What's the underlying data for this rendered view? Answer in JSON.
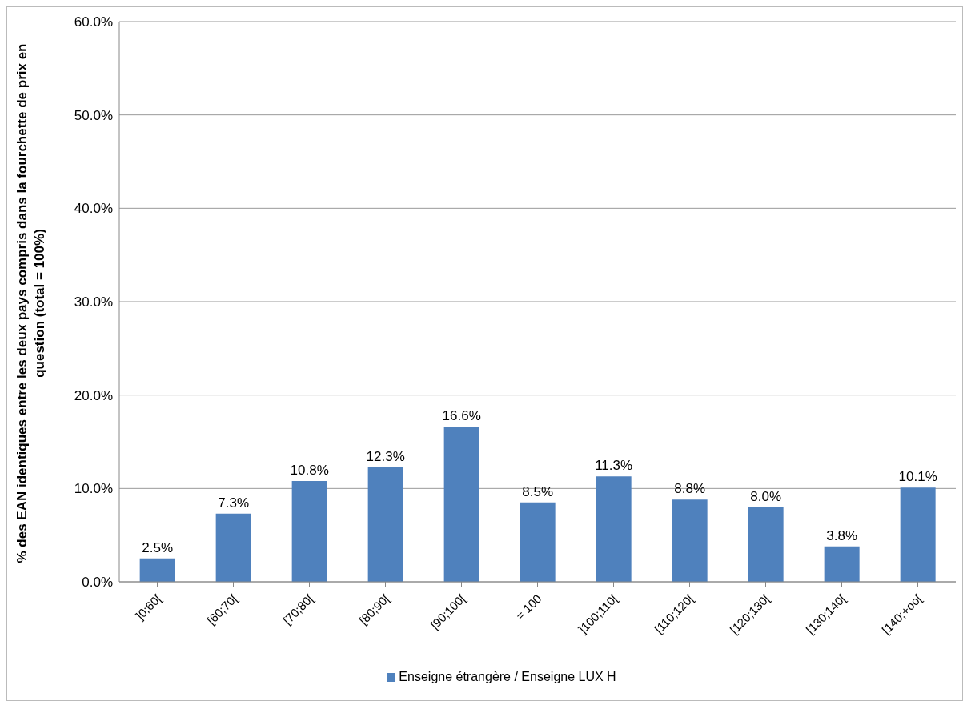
{
  "chart_data": {
    "type": "bar",
    "ylabel": "% des EAN identiques entre les deux pays compris dans la fourchette de prix en question (total = 100%)",
    "categories": [
      "]0;60[",
      "[60;70[",
      "[70;80[",
      "[80;90[",
      "[90;100[",
      "= 100",
      "]100;110[",
      "[110;120[",
      "[120;130[",
      "[130;140[",
      "[140;+oo["
    ],
    "series": [
      {
        "name": "Enseigne étrangère / Enseigne LUX H",
        "color": "#4f81bd",
        "values": [
          2.5,
          7.3,
          10.8,
          12.3,
          16.6,
          8.5,
          11.3,
          8.8,
          8.0,
          3.8,
          10.1
        ],
        "value_labels": [
          "2.5%",
          "7.3%",
          "10.8%",
          "12.3%",
          "16.6%",
          "8.5%",
          "11.3%",
          "8.8%",
          "8.0%",
          "3.8%",
          "10.1%"
        ]
      }
    ],
    "ylim": [
      0,
      60
    ],
    "yticks": [
      {
        "value": 0,
        "label": "0.0%"
      },
      {
        "value": 10,
        "label": "10.0%"
      },
      {
        "value": 20,
        "label": "20.0%"
      },
      {
        "value": 30,
        "label": "30.0%"
      },
      {
        "value": 40,
        "label": "40.0%"
      },
      {
        "value": 50,
        "label": "50.0%"
      },
      {
        "value": 60,
        "label": "60.0%"
      }
    ],
    "grid": "y",
    "legend": "bottom"
  }
}
